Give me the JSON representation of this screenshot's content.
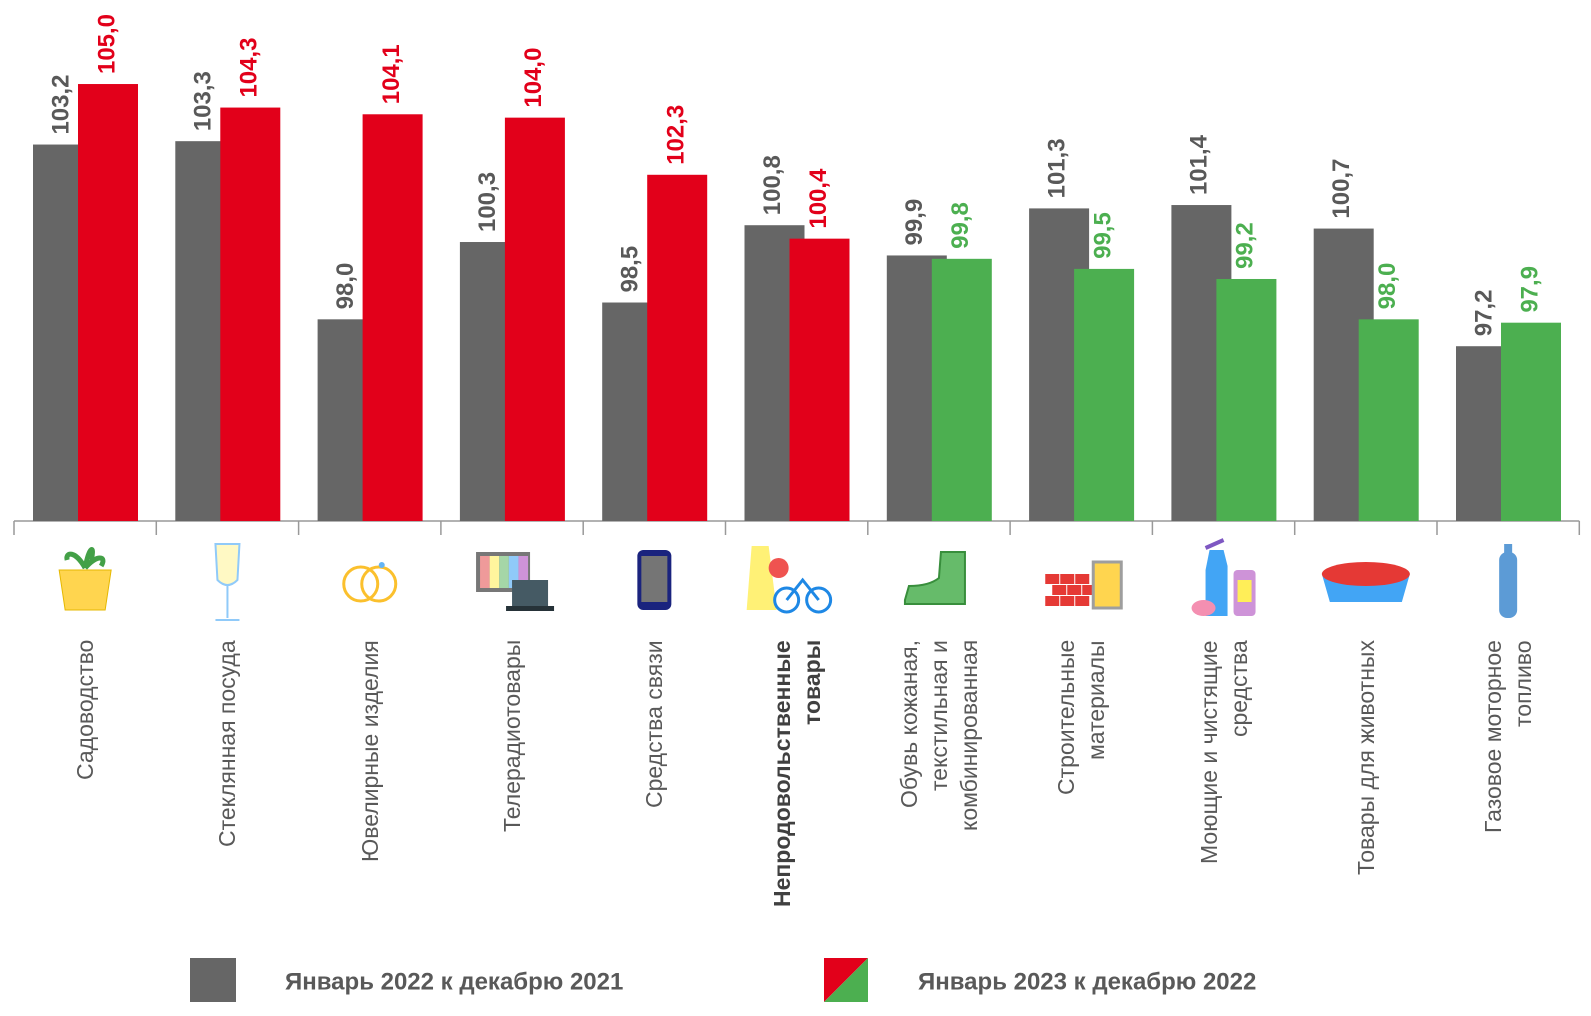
{
  "chart_data": {
    "type": "bar",
    "categories": [
      "Садоводство",
      "Стеклянная посуда",
      "Ювелирные изделия",
      "Телерадиотовары",
      "Средства связи",
      "Непродовольственные\nтовары",
      "Обувь кожаная,\nтекстильная и\nкомбинированная",
      "Строительные\nматериалы",
      "Моющие и чистящие\nсредства",
      "Товары для животных",
      "Газовое моторное\nтопливо"
    ],
    "bold_category": 5,
    "ylim": [
      92,
      107.5
    ],
    "series": [
      {
        "name": "Январь 2022 к декабрю 2021",
        "color": "#666666",
        "values": [
          103.2,
          103.3,
          98.0,
          100.3,
          98.5,
          100.8,
          99.9,
          101.3,
          101.4,
          100.7,
          97.2
        ],
        "value_labels": [
          "103,2",
          "103,3",
          "98,0",
          "100,3",
          "98,5",
          "100,8",
          "99,9",
          "101,3",
          "101,4",
          "100,7",
          "97,2"
        ]
      },
      {
        "name": "Январь 2023 к декабрю 2022",
        "colors": [
          "#e2001a",
          "#e2001a",
          "#e2001a",
          "#e2001a",
          "#e2001a",
          "#e2001a",
          "#4caf50",
          "#4caf50",
          "#4caf50",
          "#4caf50",
          "#4caf50"
        ],
        "values": [
          105.0,
          104.3,
          104.1,
          104.0,
          102.3,
          100.4,
          99.8,
          99.5,
          99.2,
          98.0,
          97.9
        ],
        "value_labels": [
          "105,0",
          "104,3",
          "104,1",
          "104,0",
          "102,3",
          "100,4",
          "99,8",
          "99,5",
          "99,2",
          "98,0",
          "97,9"
        ]
      }
    ]
  }
}
